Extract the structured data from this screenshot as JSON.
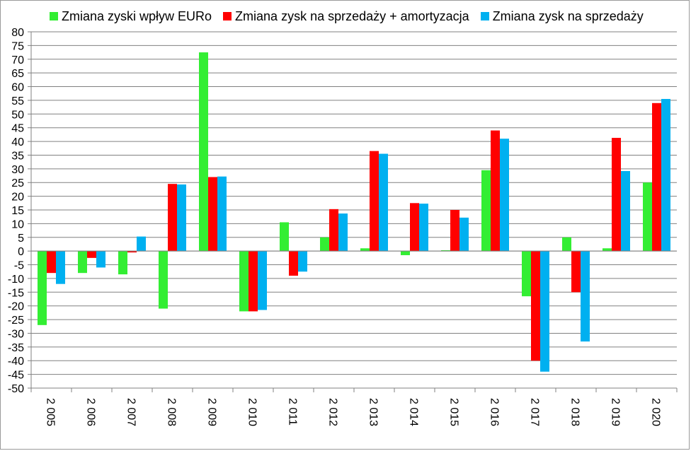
{
  "chart_data": {
    "type": "bar",
    "categories": [
      "2 005",
      "2 006",
      "2 007",
      "2 008",
      "2 009",
      "2 010",
      "2 011",
      "2 012",
      "2 013",
      "2 014",
      "2 015",
      "2 016",
      "2 017",
      "2 018",
      "2 019",
      "2 020"
    ],
    "series": [
      {
        "name": "Zmiana zyski wpływ EURo",
        "color": "#33ee33",
        "values": [
          -27,
          -8,
          -8.5,
          -21,
          72.5,
          -22,
          10.5,
          5,
          1,
          -1.5,
          0.3,
          29.5,
          -16.5,
          5,
          1,
          25
        ]
      },
      {
        "name": "Zmiana zysk na sprzedaży + amortyzacja",
        "color": "#ff0000",
        "values": [
          -8,
          -2.5,
          -0.5,
          24.5,
          27,
          -22,
          -9,
          15.3,
          36.5,
          17.5,
          15,
          44,
          -40,
          -15,
          41.3,
          54
        ]
      },
      {
        "name": "Zmiana zysk na sprzedaży",
        "color": "#00b0f0",
        "values": [
          -12,
          -6,
          5.3,
          24.3,
          27.2,
          -21.5,
          -7.5,
          13.7,
          35.5,
          17.3,
          12.2,
          41,
          -44,
          -33,
          29.2,
          55.5
        ]
      }
    ],
    "yticks": [
      "80",
      "75",
      "70",
      "65",
      "60",
      "55",
      "50",
      "45",
      "40",
      "35",
      "30",
      "25",
      "20",
      "15",
      "10",
      "5",
      "0",
      "-5",
      "-10",
      "-15",
      "-20",
      "-25",
      "-30",
      "-35",
      "-40",
      "-45",
      "-50"
    ],
    "ylim": [
      -50,
      80
    ],
    "ystep": 5,
    "grid": true,
    "legend_position": "top",
    "title": "",
    "xlabel": "",
    "ylabel": ""
  }
}
